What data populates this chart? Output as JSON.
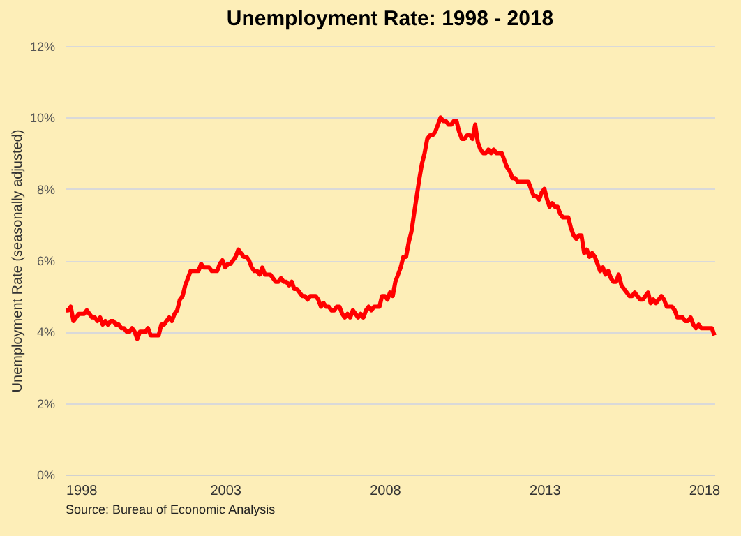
{
  "chart_data": {
    "type": "line",
    "title": "Unemployment Rate: 1998 - 2018",
    "ylabel": "Unemployment Rate (seasonally adjusted)",
    "annotations": [
      "Source: Bureau of Economic Analysis"
    ],
    "x": [
      "1998-01",
      "1998-02",
      "1998-03",
      "1998-04",
      "1998-05",
      "1998-06",
      "1998-07",
      "1998-08",
      "1998-09",
      "1998-10",
      "1998-11",
      "1998-12",
      "1999-01",
      "1999-02",
      "1999-03",
      "1999-04",
      "1999-05",
      "1999-06",
      "1999-07",
      "1999-08",
      "1999-09",
      "1999-10",
      "1999-11",
      "1999-12",
      "2000-01",
      "2000-02",
      "2000-03",
      "2000-04",
      "2000-05",
      "2000-06",
      "2000-07",
      "2000-08",
      "2000-09",
      "2000-10",
      "2000-11",
      "2000-12",
      "2001-01",
      "2001-02",
      "2001-03",
      "2001-04",
      "2001-05",
      "2001-06",
      "2001-07",
      "2001-08",
      "2001-09",
      "2001-10",
      "2001-11",
      "2001-12",
      "2002-01",
      "2002-02",
      "2002-03",
      "2002-04",
      "2002-05",
      "2002-06",
      "2002-07",
      "2002-08",
      "2002-09",
      "2002-10",
      "2002-11",
      "2002-12",
      "2003-01",
      "2003-02",
      "2003-03",
      "2003-04",
      "2003-05",
      "2003-06",
      "2003-07",
      "2003-08",
      "2003-09",
      "2003-10",
      "2003-11",
      "2003-12",
      "2004-01",
      "2004-02",
      "2004-03",
      "2004-04",
      "2004-05",
      "2004-06",
      "2004-07",
      "2004-08",
      "2004-09",
      "2004-10",
      "2004-11",
      "2004-12",
      "2005-01",
      "2005-02",
      "2005-03",
      "2005-04",
      "2005-05",
      "2005-06",
      "2005-07",
      "2005-08",
      "2005-09",
      "2005-10",
      "2005-11",
      "2005-12",
      "2006-01",
      "2006-02",
      "2006-03",
      "2006-04",
      "2006-05",
      "2006-06",
      "2006-07",
      "2006-08",
      "2006-09",
      "2006-10",
      "2006-11",
      "2006-12",
      "2007-01",
      "2007-02",
      "2007-03",
      "2007-04",
      "2007-05",
      "2007-06",
      "2007-07",
      "2007-08",
      "2007-09",
      "2007-10",
      "2007-11",
      "2007-12",
      "2008-01",
      "2008-02",
      "2008-03",
      "2008-04",
      "2008-05",
      "2008-06",
      "2008-07",
      "2008-08",
      "2008-09",
      "2008-10",
      "2008-11",
      "2008-12",
      "2009-01",
      "2009-02",
      "2009-03",
      "2009-04",
      "2009-05",
      "2009-06",
      "2009-07",
      "2009-08",
      "2009-09",
      "2009-10",
      "2009-11",
      "2009-12",
      "2010-01",
      "2010-02",
      "2010-03",
      "2010-04",
      "2010-05",
      "2010-06",
      "2010-07",
      "2010-08",
      "2010-09",
      "2010-10",
      "2010-11",
      "2010-12",
      "2011-01",
      "2011-02",
      "2011-03",
      "2011-04",
      "2011-05",
      "2011-06",
      "2011-07",
      "2011-08",
      "2011-09",
      "2011-10",
      "2011-11",
      "2011-12",
      "2012-01",
      "2012-02",
      "2012-03",
      "2012-04",
      "2012-05",
      "2012-06",
      "2012-07",
      "2012-08",
      "2012-09",
      "2012-10",
      "2012-11",
      "2012-12",
      "2013-01",
      "2013-02",
      "2013-03",
      "2013-04",
      "2013-05",
      "2013-06",
      "2013-07",
      "2013-08",
      "2013-09",
      "2013-10",
      "2013-11",
      "2013-12",
      "2014-01",
      "2014-02",
      "2014-03",
      "2014-04",
      "2014-05",
      "2014-06",
      "2014-07",
      "2014-08",
      "2014-09",
      "2014-10",
      "2014-11",
      "2014-12",
      "2015-01",
      "2015-02",
      "2015-03",
      "2015-04",
      "2015-05",
      "2015-06",
      "2015-07",
      "2015-08",
      "2015-09",
      "2015-10",
      "2015-11",
      "2015-12",
      "2016-01",
      "2016-02",
      "2016-03",
      "2016-04",
      "2016-05",
      "2016-06",
      "2016-07",
      "2016-08",
      "2016-09",
      "2016-10",
      "2016-11",
      "2016-12",
      "2017-01",
      "2017-02",
      "2017-03",
      "2017-04",
      "2017-05",
      "2017-06",
      "2017-07",
      "2017-08",
      "2017-09",
      "2017-10",
      "2017-11",
      "2017-12",
      "2018-01",
      "2018-02",
      "2018-03",
      "2018-04",
      "2018-05"
    ],
    "series": [
      {
        "color": "#ff0000",
        "values": [
          4.6,
          4.6,
          4.7,
          4.3,
          4.4,
          4.5,
          4.5,
          4.5,
          4.6,
          4.5,
          4.4,
          4.4,
          4.3,
          4.4,
          4.2,
          4.3,
          4.2,
          4.3,
          4.3,
          4.2,
          4.2,
          4.1,
          4.1,
          4.0,
          4.0,
          4.1,
          4.0,
          3.8,
          4.0,
          4.0,
          4.0,
          4.1,
          3.9,
          3.9,
          3.9,
          3.9,
          4.2,
          4.2,
          4.3,
          4.4,
          4.3,
          4.5,
          4.6,
          4.9,
          5.0,
          5.3,
          5.5,
          5.7,
          5.7,
          5.7,
          5.7,
          5.9,
          5.8,
          5.8,
          5.8,
          5.7,
          5.7,
          5.7,
          5.9,
          6.0,
          5.8,
          5.9,
          5.9,
          6.0,
          6.1,
          6.3,
          6.2,
          6.1,
          6.1,
          6.0,
          5.8,
          5.7,
          5.7,
          5.6,
          5.8,
          5.6,
          5.6,
          5.6,
          5.5,
          5.4,
          5.4,
          5.5,
          5.4,
          5.4,
          5.3,
          5.4,
          5.2,
          5.2,
          5.1,
          5.0,
          5.0,
          4.9,
          5.0,
          5.0,
          5.0,
          4.9,
          4.7,
          4.8,
          4.7,
          4.7,
          4.6,
          4.6,
          4.7,
          4.7,
          4.5,
          4.4,
          4.5,
          4.4,
          4.6,
          4.5,
          4.4,
          4.5,
          4.4,
          4.6,
          4.7,
          4.6,
          4.7,
          4.7,
          4.7,
          5.0,
          5.0,
          4.9,
          5.1,
          5.0,
          5.4,
          5.6,
          5.8,
          6.1,
          6.1,
          6.5,
          6.8,
          7.3,
          7.8,
          8.3,
          8.7,
          9.0,
          9.4,
          9.5,
          9.5,
          9.6,
          9.8,
          10.0,
          9.9,
          9.9,
          9.8,
          9.8,
          9.9,
          9.9,
          9.6,
          9.4,
          9.4,
          9.5,
          9.5,
          9.4,
          9.8,
          9.3,
          9.1,
          9.0,
          9.0,
          9.1,
          9.0,
          9.1,
          9.0,
          9.0,
          9.0,
          8.8,
          8.6,
          8.5,
          8.3,
          8.3,
          8.2,
          8.2,
          8.2,
          8.2,
          8.2,
          8.0,
          7.8,
          7.8,
          7.7,
          7.9,
          8.0,
          7.7,
          7.5,
          7.6,
          7.5,
          7.5,
          7.3,
          7.2,
          7.2,
          7.2,
          6.9,
          6.7,
          6.6,
          6.7,
          6.7,
          6.2,
          6.3,
          6.1,
          6.2,
          6.1,
          5.9,
          5.7,
          5.8,
          5.6,
          5.7,
          5.5,
          5.4,
          5.4,
          5.6,
          5.3,
          5.2,
          5.1,
          5.0,
          5.0,
          5.1,
          5.0,
          4.9,
          4.9,
          5.0,
          5.1,
          4.8,
          4.9,
          4.8,
          4.9,
          5.0,
          4.9,
          4.7,
          4.7,
          4.7,
          4.6,
          4.4,
          4.4,
          4.4,
          4.3,
          4.3,
          4.4,
          4.2,
          4.1,
          4.2,
          4.1,
          4.1,
          4.1,
          4.1,
          4.1,
          3.9
        ]
      }
    ],
    "xlim": [
      "1998-01",
      "2018-05"
    ],
    "xticks": [
      "1998",
      "2003",
      "2008",
      "2013",
      "2018"
    ],
    "ylim": [
      0,
      12
    ],
    "yticks": [
      {
        "value": 0,
        "label": "0%"
      },
      {
        "value": 2,
        "label": "2%"
      },
      {
        "value": 4,
        "label": "4%"
      },
      {
        "value": 6,
        "label": "6%"
      },
      {
        "value": 8,
        "label": "8%"
      },
      {
        "value": 10,
        "label": "10%"
      },
      {
        "value": 12,
        "label": "12%"
      }
    ],
    "grid": "y",
    "marker": "none",
    "line_style": "solid"
  }
}
